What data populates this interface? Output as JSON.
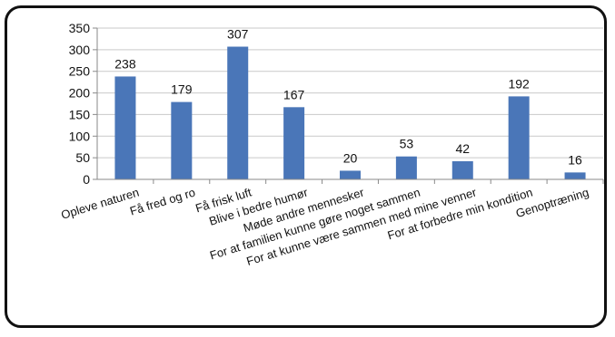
{
  "chart_data": {
    "type": "bar",
    "categories": [
      "Opleve naturen",
      "Få fred og ro",
      "Få frisk luft",
      "Blive i bedre humør",
      "Møde andre mennesker",
      "For at familien kunne gøre noget sammen",
      "For at kunne være sammen med mine venner",
      "For at forbedre min kondition",
      "Genoptræning"
    ],
    "values": [
      238,
      179,
      307,
      167,
      20,
      53,
      42,
      192,
      16
    ],
    "y_ticks": [
      0,
      50,
      100,
      150,
      200,
      250,
      300,
      350
    ],
    "ylim": [
      0,
      350
    ],
    "grid": true,
    "legend": "none",
    "colors": {
      "bar": "#4a76b8",
      "grid": "#c9c9c9",
      "text": "#111111"
    }
  }
}
